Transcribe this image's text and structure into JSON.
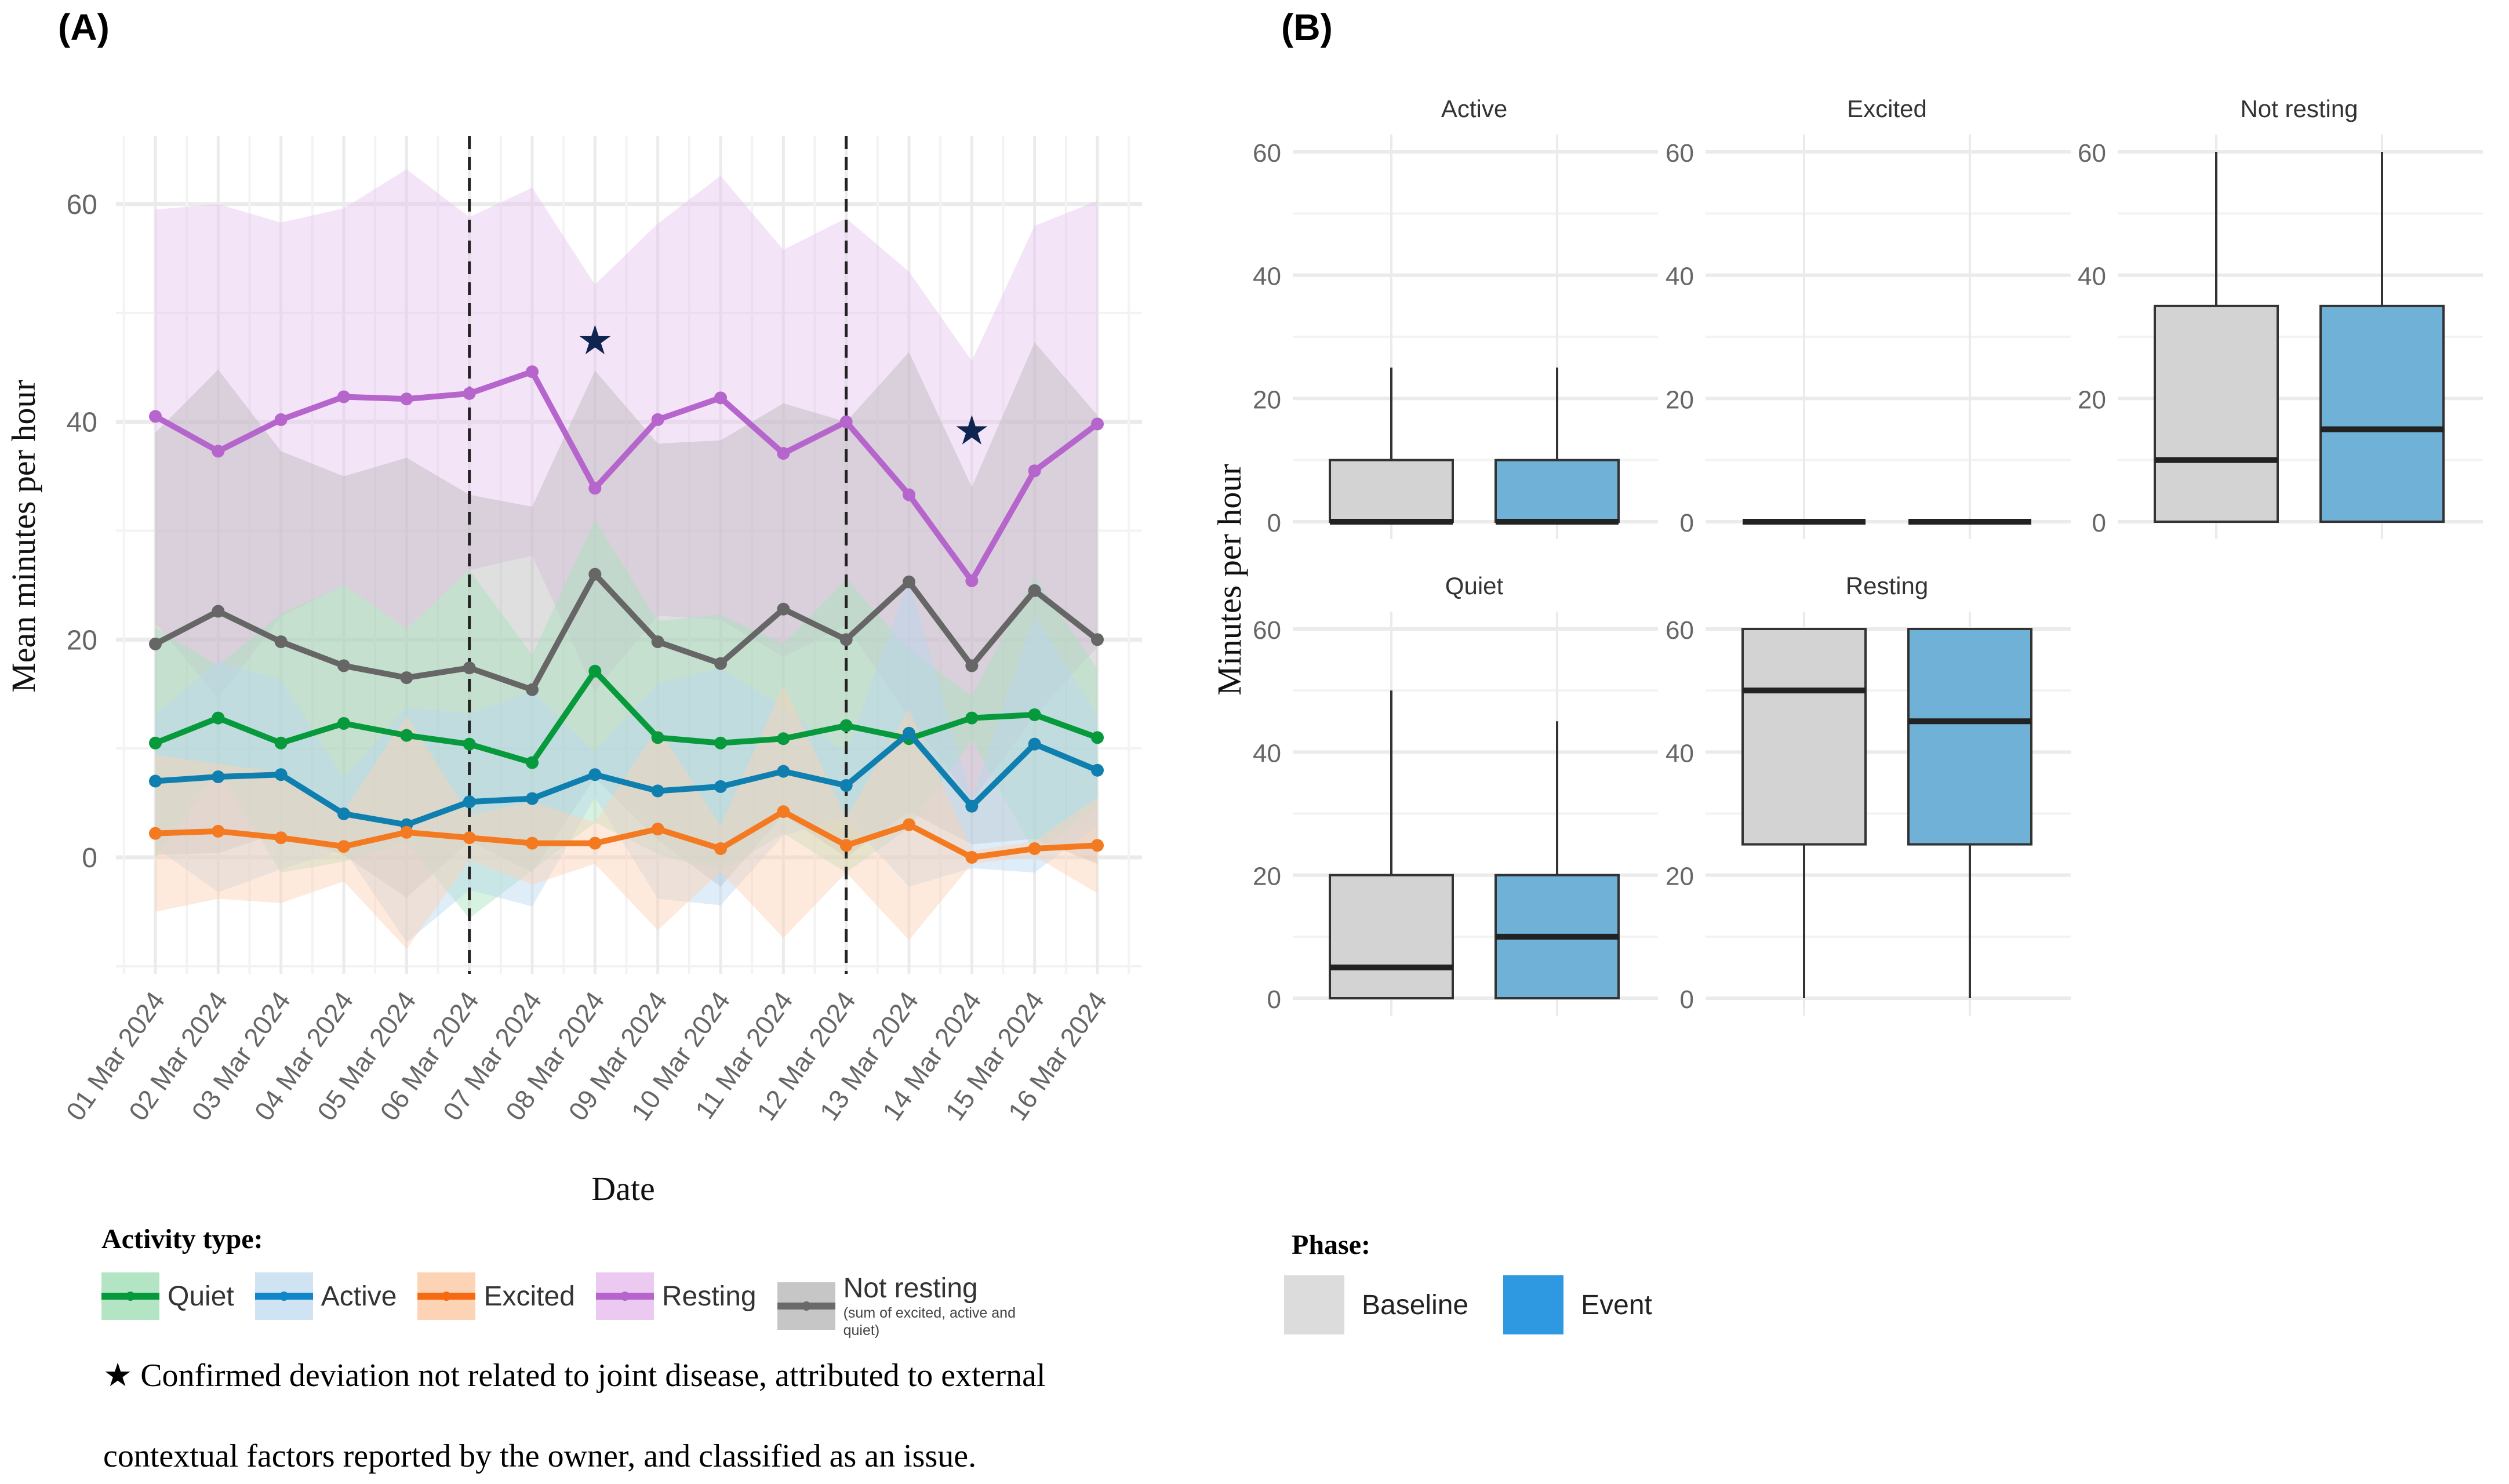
{
  "panels": {
    "a_label": "(A)",
    "b_label": "(B)"
  },
  "chart_data": [
    {
      "type": "line",
      "title": "",
      "xlabel": "Date",
      "ylabel": "Mean minutes per hour",
      "ylim": [
        -10,
        68
      ],
      "yticks": [
        0,
        20,
        40,
        60
      ],
      "grid": true,
      "x": [
        "01 Mar 2024",
        "02 Mar 2024",
        "03 Mar 2024",
        "04 Mar 2024",
        "05 Mar 2024",
        "06 Mar 2024",
        "07 Mar 2024",
        "08 Mar 2024",
        "09 Mar 2024",
        "10 Mar 2024",
        "11 Mar 2024",
        "12 Mar 2024",
        "13 Mar 2024",
        "14 Mar 2024",
        "15 Mar 2024",
        "16 Mar 2024"
      ],
      "vlines": [
        "06 Mar 2024",
        "12 Mar 2024"
      ],
      "annotations": [
        {
          "symbol": "★",
          "x": "08 Mar 2024",
          "y": 47.5
        },
        {
          "symbol": "★",
          "x": "14 Mar 2024",
          "y": 39.2
        }
      ],
      "series": [
        {
          "name": "Resting",
          "color": "#b565cc",
          "band_color": "#e7c3ef",
          "values": [
            40.5,
            37.3,
            40.2,
            42.3,
            42.1,
            42.6,
            44.6,
            33.9,
            40.2,
            42.2,
            37.1,
            40.0,
            33.3,
            25.4,
            35.5,
            39.8
          ],
          "upper": [
            59.5,
            60.0,
            58.3,
            59.6,
            63.2,
            58.8,
            61.5,
            52.6,
            58.2,
            62.6,
            55.8,
            58.7,
            53.8,
            45.6,
            58.0,
            60.3
          ],
          "lower": [
            21.5,
            14.6,
            22.1,
            25.0,
            21.0,
            26.4,
            27.7,
            15.2,
            22.2,
            21.8,
            18.4,
            21.3,
            12.8,
            5.2,
            13.0,
            19.3
          ]
        },
        {
          "name": "Not resting",
          "color": "#666666",
          "band_color": "#b9b9b9",
          "values": [
            19.6,
            22.6,
            19.8,
            17.6,
            16.5,
            17.4,
            15.4,
            26.0,
            19.8,
            17.8,
            22.8,
            20.0,
            25.3,
            17.6,
            24.5,
            20.0
          ],
          "upper": [
            39.0,
            44.8,
            37.3,
            35.0,
            36.7,
            33.3,
            32.2,
            44.7,
            38.0,
            38.3,
            41.7,
            40.0,
            46.4,
            34.0,
            47.3,
            40.6
          ],
          "lower": [
            0.2,
            0.4,
            2.3,
            0.2,
            -3.7,
            1.5,
            -1.4,
            7.3,
            1.6,
            -2.7,
            3.9,
            0.0,
            4.2,
            1.2,
            1.7,
            -0.6
          ]
        },
        {
          "name": "Quiet",
          "color": "#079a3c",
          "band_color": "#a8e2bd",
          "values": [
            10.5,
            12.8,
            10.5,
            12.3,
            11.2,
            10.4,
            8.7,
            17.1,
            11.0,
            10.5,
            10.9,
            12.1,
            10.9,
            12.8,
            13.1,
            11.0
          ],
          "upper": [
            21.1,
            17.6,
            22.4,
            25.0,
            21.0,
            26.4,
            18.6,
            31.0,
            21.7,
            22.3,
            19.6,
            25.6,
            19.1,
            14.8,
            25.8,
            17.3
          ],
          "lower": [
            -0.1,
            8.0,
            -1.4,
            -0.4,
            1.4,
            -5.6,
            -1.2,
            3.2,
            0.3,
            -1.3,
            2.2,
            -1.4,
            2.7,
            10.8,
            0.4,
            4.7
          ]
        },
        {
          "name": "Active",
          "color": "#0f7fb0",
          "band_color": "#b7d8ef",
          "values": [
            7.0,
            7.4,
            7.6,
            4.0,
            3.0,
            5.1,
            5.4,
            7.6,
            6.1,
            6.5,
            7.9,
            6.6,
            11.4,
            4.7,
            10.4,
            8.0
          ],
          "upper": [
            13.1,
            18.0,
            16.3,
            7.3,
            13.8,
            13.2,
            15.3,
            9.7,
            16.0,
            17.4,
            13.8,
            9.6,
            25.5,
            5.3,
            22.2,
            13.1
          ],
          "lower": [
            0.9,
            -3.2,
            -1.1,
            0.7,
            -7.8,
            -3.0,
            -4.5,
            5.5,
            -3.8,
            -4.4,
            2.0,
            3.6,
            -2.7,
            -1.0,
            -1.4,
            2.9
          ]
        },
        {
          "name": "Excited",
          "color": "#f47a22",
          "band_color": "#fcd1b4",
          "values": [
            2.2,
            2.4,
            1.8,
            1.0,
            2.3,
            1.8,
            1.3,
            1.3,
            2.6,
            0.8,
            4.2,
            1.1,
            3.0,
            0.0,
            0.8,
            1.1
          ],
          "upper": [
            9.4,
            8.6,
            7.8,
            4.2,
            13.0,
            3.9,
            5.1,
            3.2,
            11.9,
            2.9,
            15.8,
            3.6,
            13.6,
            0.6,
            1.5,
            5.5
          ],
          "lower": [
            -5.0,
            -3.8,
            -4.2,
            -2.2,
            -8.4,
            -0.3,
            -2.5,
            -0.6,
            -6.7,
            -1.3,
            -7.4,
            -1.4,
            -7.6,
            -0.6,
            0.1,
            -3.3
          ]
        }
      ],
      "legend": {
        "title": "Activity type:",
        "position": "bottom",
        "items": [
          {
            "label": "Quiet",
            "color": "#079a3c",
            "band_color": "#b3e5c4"
          },
          {
            "label": "Active",
            "color": "#0f87c8",
            "band_color": "#cfe3f3"
          },
          {
            "label": "Excited",
            "color": "#f66b12",
            "band_color": "#fcd3b4"
          },
          {
            "label": "Resting",
            "color": "#b565cc",
            "band_color": "#ecc9f1"
          },
          {
            "label": "Not resting",
            "sublabel": "(sum of excited, active and quiet)",
            "color": "#6a6a6a",
            "band_color": "#c6c6c6"
          }
        ]
      },
      "footnote": [
        "★ Confirmed deviation not related to joint disease, attributed to external",
        "contextual factors reported by the owner, and classified as an issue."
      ]
    },
    {
      "type": "box",
      "ylabel": "Minutes per hour",
      "ylim": [
        0,
        60
      ],
      "yticks": [
        0,
        20,
        40,
        60
      ],
      "grid": true,
      "facets": [
        {
          "title": "Active",
          "boxes": [
            {
              "phase": "Baseline",
              "min": 0,
              "q1": 0,
              "median": 0,
              "q3": 10,
              "max": 25
            },
            {
              "phase": "Event",
              "min": 0,
              "q1": 0,
              "median": 0,
              "q3": 10,
              "max": 25
            }
          ]
        },
        {
          "title": "Excited",
          "boxes": [
            {
              "phase": "Baseline",
              "min": 0,
              "q1": 0,
              "median": 0,
              "q3": 0,
              "max": 0
            },
            {
              "phase": "Event",
              "min": 0,
              "q1": 0,
              "median": 0,
              "q3": 0,
              "max": 0
            }
          ]
        },
        {
          "title": "Not resting",
          "boxes": [
            {
              "phase": "Baseline",
              "min": 0,
              "q1": 0,
              "median": 10,
              "q3": 35,
              "max": 60
            },
            {
              "phase": "Event",
              "min": 0,
              "q1": 0,
              "median": 15,
              "q3": 35,
              "max": 60
            }
          ]
        },
        {
          "title": "Quiet",
          "boxes": [
            {
              "phase": "Baseline",
              "min": 0,
              "q1": 0,
              "median": 5,
              "q3": 20,
              "max": 50
            },
            {
              "phase": "Event",
              "min": 0,
              "q1": 0,
              "median": 10,
              "q3": 20,
              "max": 45
            }
          ]
        },
        {
          "title": "Resting",
          "boxes": [
            {
              "phase": "Baseline",
              "min": 0,
              "q1": 25,
              "median": 50,
              "q3": 60,
              "max": 60
            },
            {
              "phase": "Event",
              "min": 0,
              "q1": 25,
              "median": 45,
              "q3": 60,
              "max": 60
            }
          ]
        }
      ],
      "legend": {
        "title": "Phase:",
        "position": "bottom-left",
        "items": [
          {
            "label": "Baseline",
            "color": "#dcdcdc",
            "box_color": "#d3d3d3"
          },
          {
            "label": "Event",
            "color": "#2e98e0",
            "box_color": "#70b1d7"
          }
        ]
      }
    }
  ]
}
